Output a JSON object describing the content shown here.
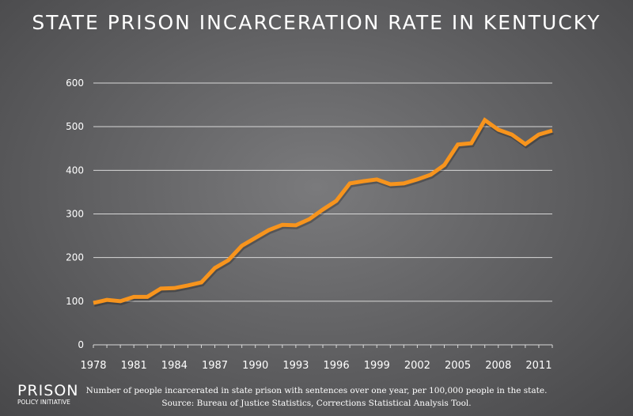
{
  "chart_data": {
    "type": "line",
    "title": "STATE PRISON INCARCERATION RATE IN KENTUCKY",
    "x": [
      1978,
      1979,
      1980,
      1981,
      1982,
      1983,
      1984,
      1985,
      1986,
      1987,
      1988,
      1989,
      1990,
      1991,
      1992,
      1993,
      1994,
      1995,
      1996,
      1997,
      1998,
      1999,
      2000,
      2001,
      2002,
      2003,
      2004,
      2005,
      2006,
      2007,
      2008,
      2009,
      2010,
      2011,
      2012
    ],
    "series": [
      {
        "values": [
          96,
          103,
          100,
          110,
          110,
          129,
          130,
          136,
          143,
          176,
          194,
          227,
          245,
          263,
          275,
          274,
          288,
          310,
          330,
          370,
          375,
          379,
          368,
          370,
          379,
          390,
          412,
          459,
          462,
          515,
          493,
          482,
          460,
          482,
          491
        ],
        "color": "#f7941d"
      }
    ],
    "xticks": [
      "1978",
      "1981",
      "1984",
      "1987",
      "1990",
      "1993",
      "1996",
      "1999",
      "2002",
      "2005",
      "2008",
      "2011"
    ],
    "yticks": [
      "0",
      "100",
      "200",
      "300",
      "400",
      "500",
      "600"
    ],
    "xlim": [
      1978,
      2012
    ],
    "ylim": [
      0,
      600
    ],
    "grid": true
  },
  "footer": {
    "logo_line1": "PRISON",
    "logo_line2": "POLICY INITIATIVE",
    "caption": "Number of people incarcerated in state prison with sentences over one year, per 100,000 people in the state.",
    "source": "Source: Bureau of Justice Statistics, Corrections Statistical Analysis Tool."
  }
}
